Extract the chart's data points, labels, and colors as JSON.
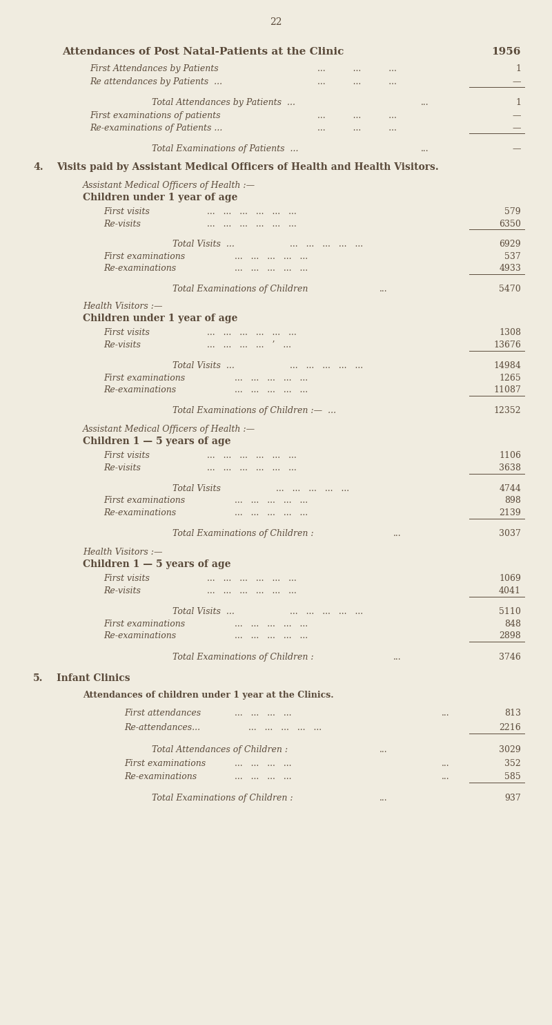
{
  "page_number": "22",
  "bg_color": "#f0ece0",
  "text_color": "#5a4a3a",
  "title": "Attendances of Post Natal-Patients at the Clinic",
  "year_header": "1956",
  "em_dash": "—",
  "section4_header": "Visits paid by Assistant Medical Officers of Health and Health Visitors.",
  "section4_num": "4.",
  "section5_num": "5.",
  "section5_header": "Infant Clinics",
  "section5_sub": "Attendances of children under 1 year at the Clinics."
}
